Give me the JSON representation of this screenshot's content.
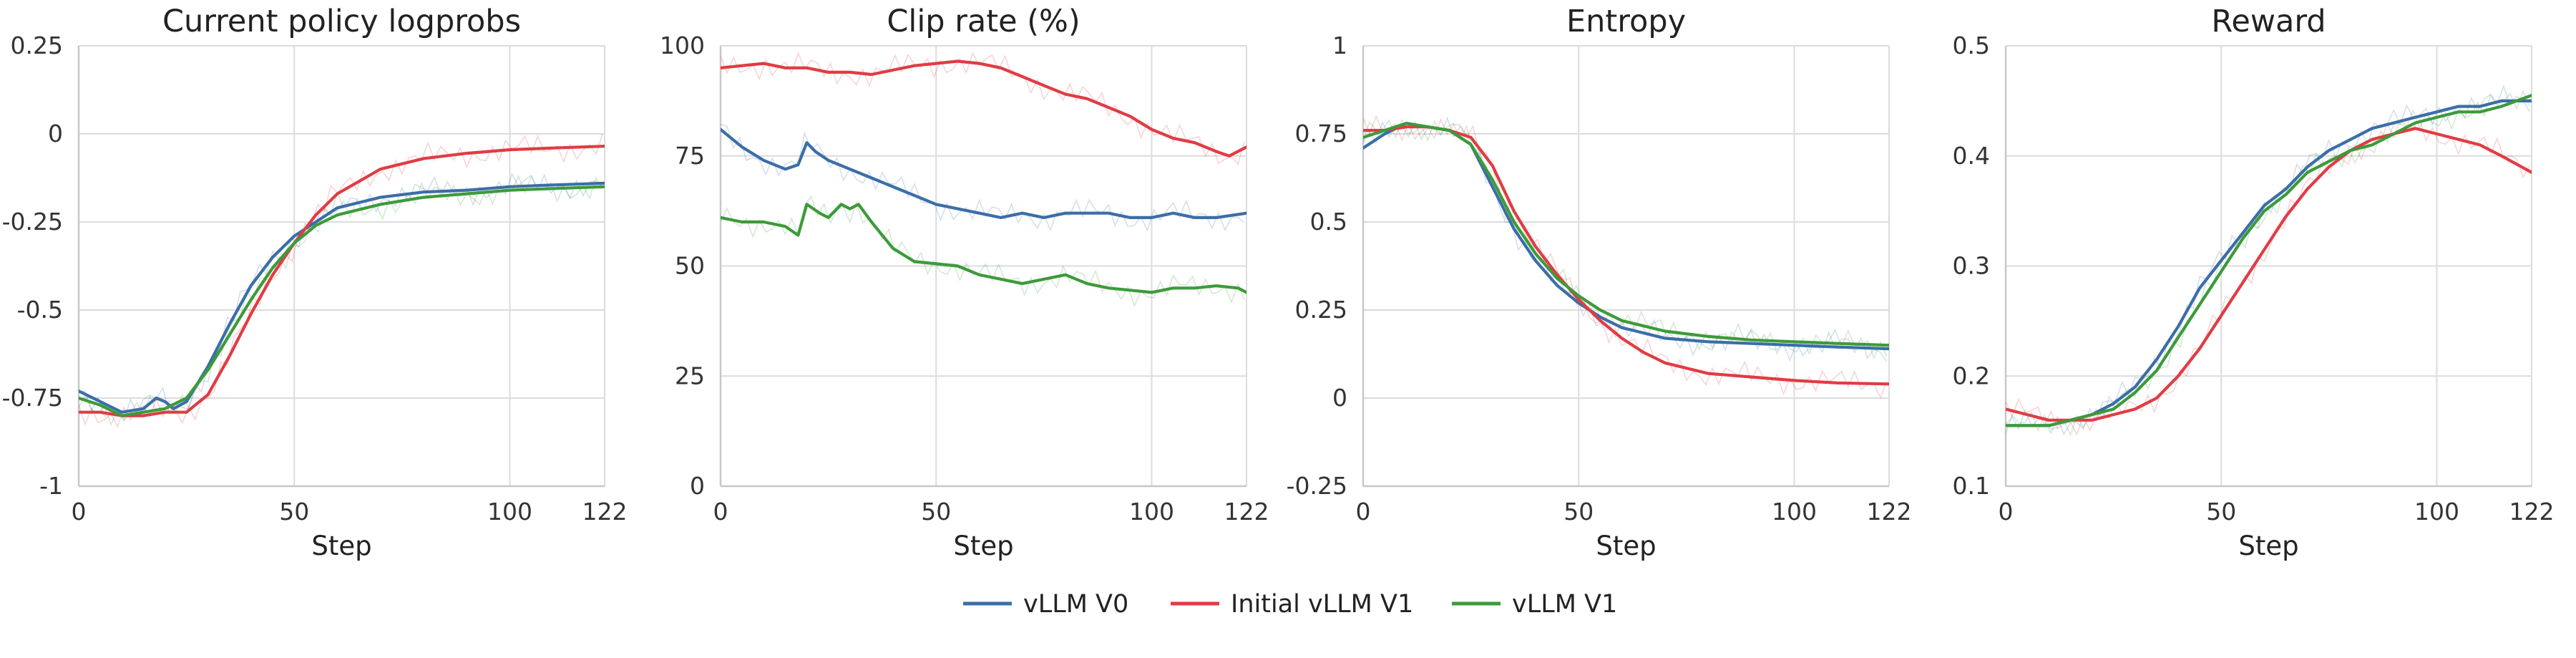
{
  "chart_data": [
    {
      "type": "line",
      "title": "Current policy logprobs",
      "xlabel": "Step",
      "ylabel": "",
      "xlim": [
        0,
        122
      ],
      "ylim": [
        -1,
        0.25
      ],
      "xticks": [
        0,
        50,
        100,
        122
      ],
      "yticks": [
        -1,
        -0.75,
        -0.5,
        -0.25,
        0,
        0.25
      ],
      "xtick_labels": [
        "0",
        "50",
        "100",
        "122"
      ],
      "ytick_labels": [
        "-1",
        "-0.75",
        "-0.5",
        "-0.25",
        "0",
        "0.25"
      ],
      "grid": true,
      "series": [
        {
          "name": "vLLM V0",
          "color": "#3b6ea8",
          "x": [
            0,
            5,
            10,
            15,
            18,
            20,
            22,
            25,
            30,
            35,
            40,
            45,
            50,
            55,
            60,
            70,
            80,
            90,
            100,
            110,
            122
          ],
          "y": [
            -0.73,
            -0.76,
            -0.79,
            -0.78,
            -0.75,
            -0.76,
            -0.78,
            -0.76,
            -0.66,
            -0.54,
            -0.43,
            -0.35,
            -0.29,
            -0.25,
            -0.21,
            -0.18,
            -0.165,
            -0.16,
            -0.15,
            -0.145,
            -0.14
          ]
        },
        {
          "name": "Initial vLLM V1",
          "color": "#e03c44",
          "x": [
            0,
            5,
            10,
            15,
            20,
            25,
            30,
            35,
            40,
            45,
            50,
            55,
            60,
            70,
            80,
            90,
            100,
            110,
            122
          ],
          "y": [
            -0.79,
            -0.79,
            -0.8,
            -0.8,
            -0.79,
            -0.79,
            -0.74,
            -0.63,
            -0.51,
            -0.4,
            -0.31,
            -0.23,
            -0.17,
            -0.1,
            -0.07,
            -0.055,
            -0.045,
            -0.04,
            -0.035
          ]
        },
        {
          "name": "vLLM V1",
          "color": "#3d9a3a",
          "x": [
            0,
            5,
            10,
            15,
            20,
            25,
            30,
            35,
            40,
            45,
            50,
            55,
            60,
            70,
            80,
            90,
            100,
            110,
            122
          ],
          "y": [
            -0.75,
            -0.77,
            -0.8,
            -0.79,
            -0.78,
            -0.75,
            -0.67,
            -0.57,
            -0.47,
            -0.38,
            -0.31,
            -0.26,
            -0.23,
            -0.2,
            -0.18,
            -0.17,
            -0.16,
            -0.155,
            -0.15
          ]
        }
      ]
    },
    {
      "type": "line",
      "title": "Clip rate (%)",
      "xlabel": "Step",
      "ylabel": "",
      "xlim": [
        0,
        122
      ],
      "ylim": [
        0,
        100
      ],
      "xticks": [
        0,
        50,
        100,
        122
      ],
      "yticks": [
        0,
        25,
        50,
        75,
        100
      ],
      "xtick_labels": [
        "0",
        "50",
        "100",
        "122"
      ],
      "ytick_labels": [
        "0",
        "25",
        "50",
        "75",
        "100"
      ],
      "grid": true,
      "series": [
        {
          "name": "vLLM V0",
          "color": "#3b6ea8",
          "x": [
            0,
            5,
            10,
            15,
            18,
            20,
            22,
            25,
            30,
            35,
            40,
            45,
            50,
            55,
            60,
            65,
            70,
            75,
            80,
            85,
            90,
            95,
            100,
            105,
            110,
            115,
            122
          ],
          "y": [
            81,
            77,
            74,
            72,
            73,
            78,
            76,
            74,
            72,
            70,
            68,
            66,
            64,
            63,
            62,
            61,
            62,
            61,
            62,
            62,
            62,
            61,
            61,
            62,
            61,
            61,
            62
          ]
        },
        {
          "name": "Initial vLLM V1",
          "color": "#e03c44",
          "x": [
            0,
            5,
            10,
            15,
            20,
            25,
            30,
            35,
            40,
            45,
            50,
            55,
            60,
            65,
            70,
            75,
            80,
            85,
            90,
            95,
            100,
            105,
            110,
            115,
            118,
            122
          ],
          "y": [
            95,
            95.5,
            96,
            95,
            95,
            94,
            94,
            93.5,
            94.5,
            95.5,
            96,
            96.5,
            96,
            95,
            93,
            91,
            89,
            88,
            86,
            84,
            81,
            79,
            78,
            76,
            75,
            77
          ]
        },
        {
          "name": "vLLM V1",
          "color": "#3d9a3a",
          "x": [
            0,
            5,
            10,
            15,
            18,
            20,
            23,
            25,
            28,
            30,
            32,
            35,
            40,
            45,
            50,
            55,
            60,
            65,
            70,
            75,
            80,
            85,
            90,
            95,
            100,
            105,
            110,
            115,
            120,
            122
          ],
          "y": [
            61,
            60,
            60,
            59,
            57,
            64,
            62,
            61,
            64,
            63,
            64,
            60,
            54,
            51,
            50.5,
            50,
            48,
            47,
            46,
            47,
            48,
            46,
            45,
            44.5,
            44,
            45,
            45,
            45.5,
            45,
            44
          ]
        }
      ]
    },
    {
      "type": "line",
      "title": "Entropy",
      "xlabel": "Step",
      "ylabel": "",
      "xlim": [
        0,
        122
      ],
      "ylim": [
        -0.25,
        1
      ],
      "xticks": [
        0,
        50,
        100,
        122
      ],
      "yticks": [
        -0.25,
        0,
        0.25,
        0.5,
        0.75,
        1
      ],
      "xtick_labels": [
        "0",
        "50",
        "100",
        "122"
      ],
      "ytick_labels": [
        "-0.25",
        "0",
        "0.25",
        "0.5",
        "0.75",
        "1"
      ],
      "grid": true,
      "series": [
        {
          "name": "vLLM V0",
          "color": "#3b6ea8",
          "x": [
            0,
            5,
            10,
            15,
            20,
            25,
            30,
            35,
            40,
            45,
            50,
            55,
            60,
            70,
            80,
            90,
            100,
            110,
            122
          ],
          "y": [
            0.71,
            0.75,
            0.78,
            0.77,
            0.76,
            0.72,
            0.6,
            0.48,
            0.39,
            0.32,
            0.27,
            0.23,
            0.2,
            0.17,
            0.16,
            0.155,
            0.15,
            0.145,
            0.14
          ]
        },
        {
          "name": "Initial vLLM V1",
          "color": "#e03c44",
          "x": [
            0,
            5,
            10,
            15,
            20,
            25,
            30,
            35,
            40,
            45,
            50,
            55,
            60,
            65,
            70,
            80,
            90,
            100,
            110,
            122
          ],
          "y": [
            0.76,
            0.76,
            0.77,
            0.77,
            0.76,
            0.74,
            0.66,
            0.53,
            0.43,
            0.35,
            0.28,
            0.22,
            0.17,
            0.13,
            0.1,
            0.07,
            0.06,
            0.05,
            0.043,
            0.04
          ]
        },
        {
          "name": "vLLM V1",
          "color": "#3d9a3a",
          "x": [
            0,
            5,
            10,
            15,
            20,
            25,
            30,
            35,
            40,
            45,
            50,
            55,
            60,
            70,
            80,
            90,
            100,
            110,
            122
          ],
          "y": [
            0.74,
            0.76,
            0.78,
            0.77,
            0.76,
            0.72,
            0.62,
            0.5,
            0.41,
            0.34,
            0.29,
            0.25,
            0.22,
            0.19,
            0.175,
            0.165,
            0.16,
            0.155,
            0.15
          ]
        }
      ]
    },
    {
      "type": "line",
      "title": "Reward",
      "xlabel": "Step",
      "ylabel": "",
      "xlim": [
        0,
        122
      ],
      "ylim": [
        0.1,
        0.5
      ],
      "xticks": [
        0,
        50,
        100,
        122
      ],
      "yticks": [
        0.1,
        0.2,
        0.3,
        0.4,
        0.5
      ],
      "xtick_labels": [
        "0",
        "50",
        "100",
        "122"
      ],
      "ytick_labels": [
        "0.1",
        "0.2",
        "0.3",
        "0.4",
        "0.5"
      ],
      "grid": true,
      "series": [
        {
          "name": "vLLM V0",
          "color": "#3b6ea8",
          "x": [
            0,
            5,
            10,
            15,
            20,
            25,
            30,
            35,
            40,
            45,
            50,
            55,
            60,
            65,
            70,
            75,
            80,
            85,
            90,
            95,
            100,
            105,
            110,
            115,
            122
          ],
          "y": [
            0.155,
            0.155,
            0.155,
            0.16,
            0.165,
            0.175,
            0.19,
            0.215,
            0.245,
            0.28,
            0.305,
            0.33,
            0.355,
            0.37,
            0.39,
            0.405,
            0.415,
            0.425,
            0.43,
            0.435,
            0.44,
            0.445,
            0.445,
            0.45,
            0.45
          ]
        },
        {
          "name": "Initial vLLM V1",
          "color": "#e03c44",
          "x": [
            0,
            5,
            10,
            15,
            20,
            25,
            30,
            35,
            40,
            45,
            50,
            55,
            60,
            65,
            70,
            75,
            80,
            85,
            90,
            95,
            100,
            105,
            110,
            115,
            122
          ],
          "y": [
            0.17,
            0.165,
            0.16,
            0.16,
            0.16,
            0.165,
            0.17,
            0.18,
            0.2,
            0.225,
            0.255,
            0.285,
            0.315,
            0.345,
            0.37,
            0.39,
            0.405,
            0.415,
            0.42,
            0.425,
            0.42,
            0.415,
            0.41,
            0.4,
            0.385
          ]
        },
        {
          "name": "vLLM V1",
          "color": "#3d9a3a",
          "x": [
            0,
            5,
            10,
            15,
            20,
            25,
            30,
            35,
            40,
            45,
            50,
            55,
            60,
            65,
            70,
            75,
            80,
            85,
            90,
            95,
            100,
            105,
            110,
            115,
            122
          ],
          "y": [
            0.155,
            0.155,
            0.155,
            0.16,
            0.165,
            0.17,
            0.185,
            0.205,
            0.235,
            0.265,
            0.295,
            0.325,
            0.35,
            0.365,
            0.385,
            0.395,
            0.405,
            0.41,
            0.42,
            0.43,
            0.435,
            0.44,
            0.44,
            0.445,
            0.455
          ]
        }
      ]
    }
  ],
  "legend": {
    "placement": "bottom-center",
    "items": [
      {
        "label": "vLLM V0",
        "color": "#3b6ea8"
      },
      {
        "label": "Initial vLLM V1",
        "color": "#e03c44"
      },
      {
        "label": "vLLM V1",
        "color": "#3d9a3a"
      }
    ]
  }
}
